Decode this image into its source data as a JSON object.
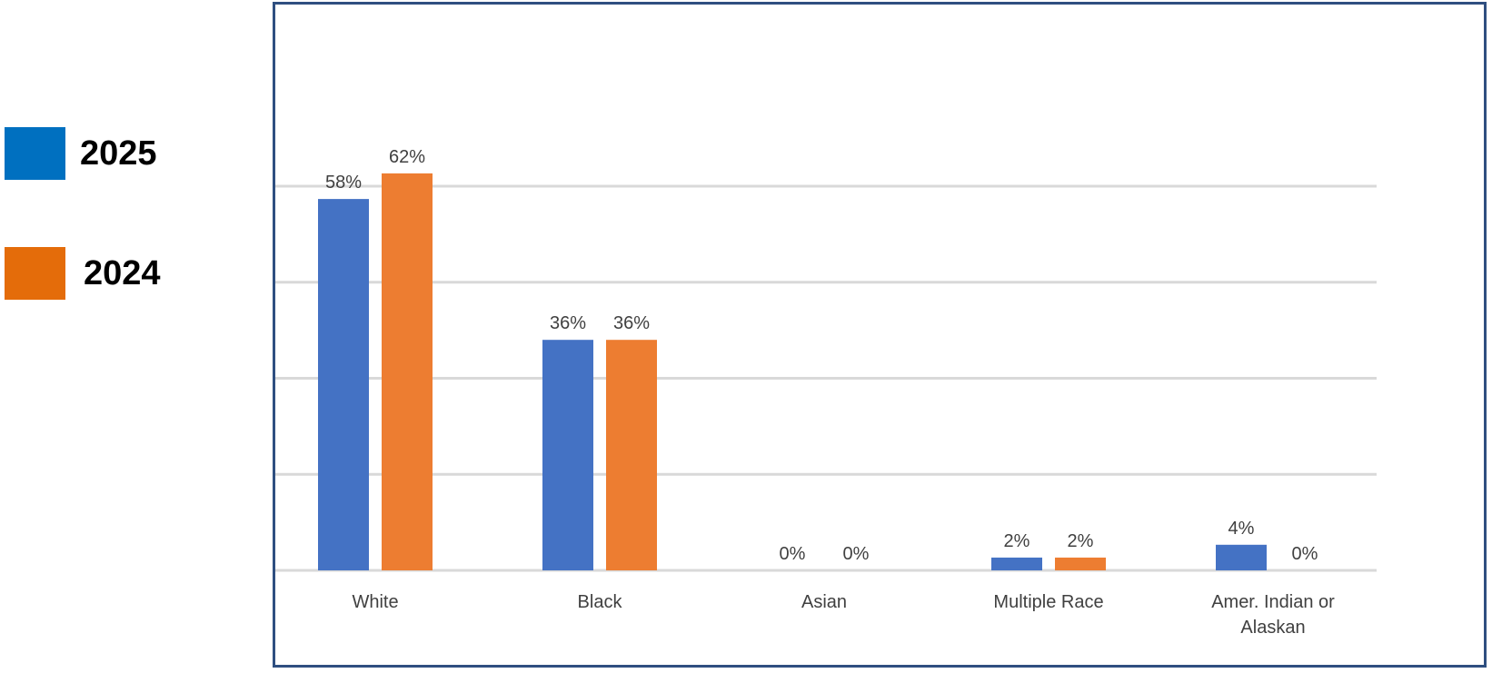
{
  "legend": [
    {
      "label": "2025",
      "color": "#0070C0"
    },
    {
      "label": "2024",
      "color": "#E46C0A"
    }
  ],
  "chart_data": {
    "type": "bar",
    "categories": [
      "White",
      "Black",
      "Asian",
      "Multiple Race",
      "Amer. Indian or Alaskan"
    ],
    "series": [
      {
        "name": "2025",
        "values": [
          58,
          36,
          0,
          2,
          4
        ],
        "labels": [
          "58%",
          "36%",
          "0%",
          "2%",
          "4%"
        ],
        "color": "#4472C4"
      },
      {
        "name": "2024",
        "values": [
          62,
          36,
          0,
          2,
          0
        ],
        "labels": [
          "62%",
          "36%",
          "0%",
          "2%",
          "0%"
        ],
        "color": "#ED7D31"
      }
    ],
    "ylim": [
      0,
      70
    ],
    "gridlines": true,
    "legend_position": "left"
  }
}
